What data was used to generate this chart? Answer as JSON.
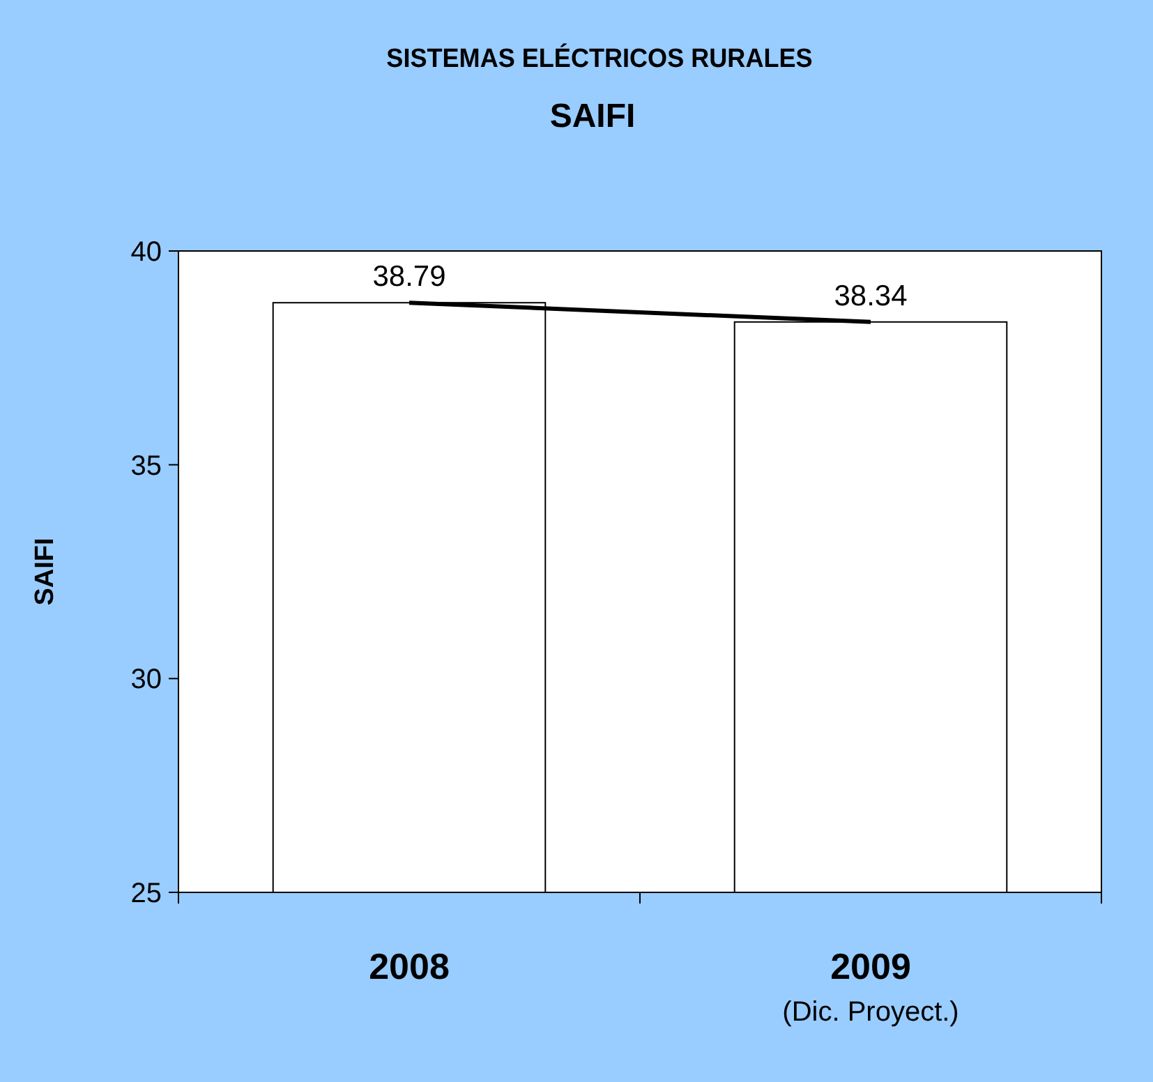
{
  "chart_data": {
    "type": "bar",
    "title": "SISTEMAS ELÉCTRICOS RURALES",
    "subtitle": "SAIFI",
    "ylabel": "SAIFI",
    "categories": [
      "2008",
      "2009\n(Dic. Proyect.)"
    ],
    "series": [
      {
        "color": "#ffffff",
        "values": [
          38.79,
          38.34
        ],
        "value_labels": [
          "38.79",
          "38.34"
        ]
      },
      {
        "type": "line",
        "color": "#000000",
        "values": [
          38.79,
          38.34
        ]
      }
    ],
    "ylim": [
      25,
      40
    ],
    "yticks": [
      25,
      30,
      35,
      40
    ],
    "grid": false,
    "marker": "none"
  }
}
